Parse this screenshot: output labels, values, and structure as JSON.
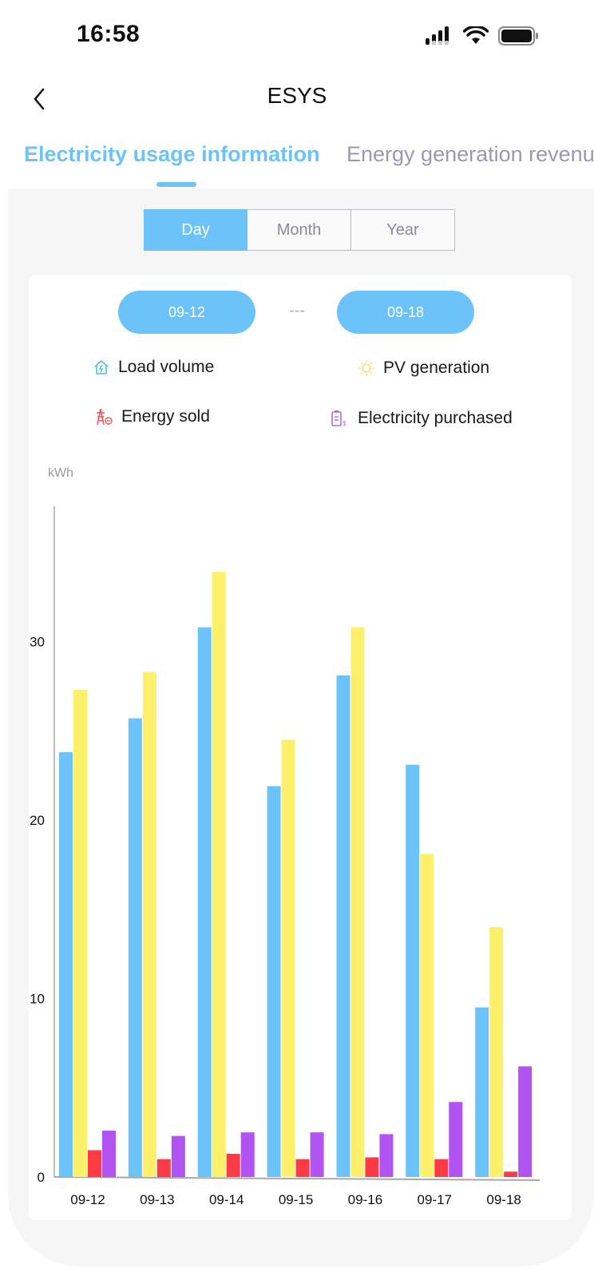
{
  "status_bar": {
    "time": "16:58"
  },
  "header": {
    "title": "ESYS"
  },
  "tabs": [
    {
      "label": "Electricity usage information",
      "active": true
    },
    {
      "label": "Energy generation revenue",
      "active": false
    }
  ],
  "period_selector": {
    "options": [
      "Day",
      "Month",
      "Year"
    ],
    "selected": "Day"
  },
  "date_range": {
    "start": "09-12",
    "separator": "---",
    "end": "09-18"
  },
  "legend": [
    {
      "label": "Load volume",
      "icon": "house-lightning-icon",
      "color": "#6cc3f9"
    },
    {
      "label": "PV generation",
      "icon": "sun-icon",
      "color": "#fdf06b"
    },
    {
      "label": "Energy sold",
      "icon": "power-tower-icon",
      "color": "#fe3b45"
    },
    {
      "label": "Electricity purchased",
      "icon": "battery-dollar-icon",
      "color": "#b154f2"
    }
  ],
  "chart_data": {
    "type": "bar",
    "title": "",
    "xlabel": "",
    "ylabel": "kWh",
    "ylim": [
      0,
      37
    ],
    "yticks": [
      0,
      10,
      20,
      30
    ],
    "grid": false,
    "legend_position": "top",
    "categories": [
      "09-12",
      "09-13",
      "09-14",
      "09-15",
      "09-16",
      "09-17",
      "09-18"
    ],
    "series": [
      {
        "name": "Load volume",
        "color": "#6cc3f9",
        "values": [
          23.8,
          25.7,
          30.8,
          21.9,
          28.1,
          23.1,
          9.5
        ]
      },
      {
        "name": "PV generation",
        "color": "#fdf06b",
        "values": [
          27.3,
          28.3,
          33.9,
          24.5,
          30.8,
          18.1,
          14.0
        ]
      },
      {
        "name": "Energy sold",
        "color": "#fe3b45",
        "values": [
          1.5,
          1.0,
          1.3,
          1.0,
          1.1,
          1.0,
          0.3
        ]
      },
      {
        "name": "Electricity purchased",
        "color": "#b154f2",
        "values": [
          2.6,
          2.3,
          2.5,
          2.5,
          2.4,
          4.2,
          6.2
        ]
      }
    ]
  }
}
